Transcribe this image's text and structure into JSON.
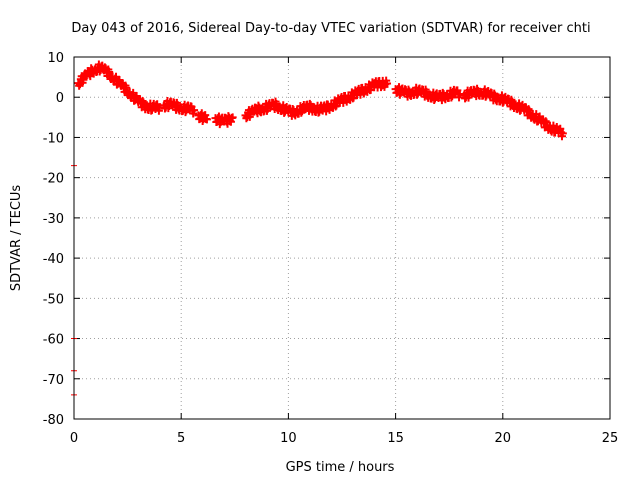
{
  "chart_data": {
    "type": "scatter",
    "title": "Day 043 of 2016, Sidereal Day-to-day VTEC variation (SDTVAR) for receiver chti",
    "xlabel": "GPS time / hours",
    "ylabel": "SDTVAR / TECUs",
    "xlim": [
      0,
      25
    ],
    "ylim": [
      -80,
      10
    ],
    "xticks": [
      0,
      5,
      10,
      15,
      20,
      25
    ],
    "yticks": [
      10,
      0,
      -10,
      -20,
      -30,
      -40,
      -50,
      -60,
      -70,
      -80
    ],
    "grid": true,
    "marker": "+",
    "colors": {
      "series": "#ff0000",
      "axes": "#000000",
      "grid": "#a0a0a0"
    },
    "series": [
      {
        "name": "SDTVAR",
        "segments": [
          {
            "x": [
              0.2,
              0.4,
              0.6,
              0.8,
              1.0,
              1.2,
              1.4,
              1.6,
              1.8,
              2.0,
              2.2,
              2.4,
              2.6,
              2.8,
              3.0,
              3.2,
              3.4,
              3.6,
              3.8,
              4.0
            ],
            "y": [
              3.5,
              4.5,
              5.5,
              6.3,
              7.0,
              7.3,
              6.8,
              6.0,
              5.0,
              4.0,
              3.0,
              2.0,
              1.0,
              0.0,
              -1.0,
              -1.8,
              -2.3,
              -2.5,
              -2.6,
              -2.5
            ]
          },
          {
            "x": [
              4.2,
              4.4,
              4.6,
              4.8,
              5.0,
              5.2,
              5.4,
              5.6
            ],
            "y": [
              -2.0,
              -1.8,
              -2.0,
              -2.3,
              -2.6,
              -2.8,
              -3.0,
              -3.2
            ]
          },
          {
            "x": [
              5.8,
              6.0,
              6.2
            ],
            "y": [
              -4.5,
              -5.0,
              -5.5
            ]
          },
          {
            "x": [
              6.6,
              6.8,
              7.0,
              7.2,
              7.4
            ],
            "y": [
              -5.2,
              -5.8,
              -6.0,
              -5.6,
              -5.0
            ]
          },
          {
            "x": [
              8.0,
              8.2,
              8.4,
              8.6,
              8.8,
              9.0,
              9.2,
              9.4,
              9.6,
              9.8,
              10.0,
              10.2,
              10.4,
              10.6,
              10.8,
              11.0,
              11.2,
              11.4,
              11.6,
              11.8,
              12.0,
              12.2,
              12.4,
              12.6,
              12.8,
              13.0,
              13.2,
              13.4,
              13.6,
              13.8,
              14.0,
              14.2,
              14.4,
              14.6
            ],
            "y": [
              -4.5,
              -4.0,
              -3.5,
              -3.0,
              -2.8,
              -2.5,
              -2.2,
              -2.0,
              -2.5,
              -3.0,
              -3.5,
              -3.8,
              -3.5,
              -3.0,
              -2.7,
              -2.5,
              -2.8,
              -3.0,
              -3.0,
              -2.6,
              -2.0,
              -1.5,
              -1.0,
              -0.5,
              0.0,
              0.5,
              1.0,
              1.5,
              2.0,
              2.5,
              3.0,
              3.2,
              3.5,
              3.4
            ]
          },
          {
            "x": [
              15.0,
              15.2,
              15.4,
              15.6,
              15.8,
              16.0,
              16.2,
              16.4,
              16.6,
              16.8,
              17.0,
              17.2,
              17.4,
              17.6,
              17.8,
              18.0
            ],
            "y": [
              2.0,
              1.5,
              1.2,
              1.0,
              1.3,
              1.5,
              1.2,
              1.0,
              0.5,
              0.2,
              0.0,
              0.2,
              0.5,
              0.8,
              1.0,
              0.8
            ]
          },
          {
            "x": [
              18.2,
              18.4,
              18.6,
              18.8,
              19.0,
              19.2,
              19.4,
              19.6,
              19.8,
              20.0,
              20.2,
              20.4,
              20.6,
              20.8,
              21.0,
              21.2,
              21.4,
              21.6,
              21.8,
              22.0,
              22.2,
              22.4,
              22.6,
              22.8
            ],
            "y": [
              0.5,
              0.8,
              1.0,
              1.2,
              1.2,
              1.0,
              0.5,
              0.0,
              -0.2,
              -0.5,
              -1.0,
              -1.5,
              -2.0,
              -2.5,
              -3.0,
              -3.8,
              -4.5,
              -5.2,
              -6.0,
              -6.8,
              -7.5,
              -8.0,
              -8.5,
              -9.0
            ]
          },
          {
            "x": [
              0.0,
              0.0,
              0.0,
              0.0
            ],
            "y": [
              -17,
              -60,
              -68,
              -74
            ]
          }
        ]
      }
    ]
  }
}
